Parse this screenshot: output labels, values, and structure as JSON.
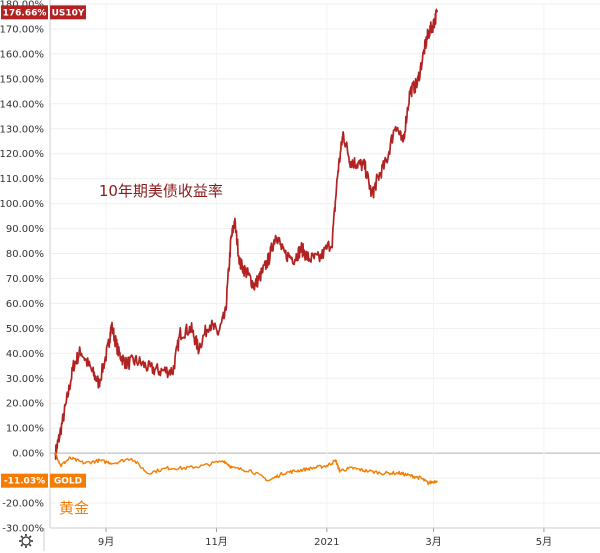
{
  "chart_data": {
    "type": "line",
    "x_ticks": [
      "9月",
      "11月",
      "2021",
      "3月",
      "5月"
    ],
    "y_ticks": [
      "180.00%",
      "170.00%",
      "160.00%",
      "150.00%",
      "140.00%",
      "130.00%",
      "120.00%",
      "110.00%",
      "100.00%",
      "90.00%",
      "80.00%",
      "70.00%",
      "60.00%",
      "50.00%",
      "40.00%",
      "30.00%",
      "20.00%",
      "10.00%",
      "0.00%",
      "-10.00%",
      "-20.00%",
      "-30.00%"
    ],
    "ylim": [
      -30,
      180
    ],
    "xlim": [
      "2020-08-01",
      "2021-06-01"
    ],
    "series": [
      {
        "name": "US10Y",
        "color": "#b22222",
        "last_label": "176.66%",
        "points": [
          [
            "2020-08-04",
            0
          ],
          [
            "2020-08-06",
            6
          ],
          [
            "2020-08-10",
            20
          ],
          [
            "2020-08-14",
            35
          ],
          [
            "2020-08-18",
            41
          ],
          [
            "2020-08-24",
            33
          ],
          [
            "2020-08-28",
            28
          ],
          [
            "2020-09-02",
            42
          ],
          [
            "2020-09-04",
            51
          ],
          [
            "2020-09-08",
            40
          ],
          [
            "2020-09-12",
            36
          ],
          [
            "2020-09-18",
            37
          ],
          [
            "2020-09-25",
            34
          ],
          [
            "2020-10-01",
            33
          ],
          [
            "2020-10-08",
            33
          ],
          [
            "2020-10-12",
            48
          ],
          [
            "2020-10-18",
            50
          ],
          [
            "2020-10-22",
            42
          ],
          [
            "2020-10-28",
            52
          ],
          [
            "2020-11-02",
            48
          ],
          [
            "2020-11-06",
            56
          ],
          [
            "2020-11-09",
            85
          ],
          [
            "2020-11-11",
            93
          ],
          [
            "2020-11-14",
            76
          ],
          [
            "2020-11-18",
            72
          ],
          [
            "2020-11-22",
            67
          ],
          [
            "2020-11-26",
            72
          ],
          [
            "2020-11-30",
            78
          ],
          [
            "2020-12-04",
            88
          ],
          [
            "2020-12-08",
            80
          ],
          [
            "2020-12-14",
            78
          ],
          [
            "2020-12-18",
            82
          ],
          [
            "2020-12-22",
            78
          ],
          [
            "2020-12-28",
            78
          ],
          [
            "2021-01-04",
            85
          ],
          [
            "2021-01-07",
            112
          ],
          [
            "2021-01-10",
            128
          ],
          [
            "2021-01-14",
            117
          ],
          [
            "2021-01-18",
            116
          ],
          [
            "2021-01-22",
            115
          ],
          [
            "2021-01-26",
            103
          ],
          [
            "2021-01-29",
            110
          ],
          [
            "2021-02-03",
            117
          ],
          [
            "2021-02-08",
            132
          ],
          [
            "2021-02-12",
            124
          ],
          [
            "2021-02-16",
            145
          ],
          [
            "2021-02-20",
            148
          ],
          [
            "2021-02-24",
            162
          ],
          [
            "2021-02-26",
            168
          ],
          [
            "2021-03-01",
            172
          ],
          [
            "2021-03-03",
            176.66
          ]
        ]
      },
      {
        "name": "GOLD",
        "color": "#f57c00",
        "last_label": "-11.03%",
        "points": [
          [
            "2020-08-04",
            0
          ],
          [
            "2020-08-07",
            -5
          ],
          [
            "2020-08-12",
            -2
          ],
          [
            "2020-08-20",
            -4
          ],
          [
            "2020-08-28",
            -3
          ],
          [
            "2020-09-05",
            -4
          ],
          [
            "2020-09-15",
            -2
          ],
          [
            "2020-09-24",
            -8
          ],
          [
            "2020-10-05",
            -6
          ],
          [
            "2020-10-15",
            -6
          ],
          [
            "2020-10-25",
            -5
          ],
          [
            "2020-11-05",
            -3
          ],
          [
            "2020-11-10",
            -6
          ],
          [
            "2020-11-20",
            -7
          ],
          [
            "2020-11-30",
            -11
          ],
          [
            "2020-12-08",
            -8
          ],
          [
            "2020-12-16",
            -7
          ],
          [
            "2020-12-24",
            -6
          ],
          [
            "2021-01-01",
            -5
          ],
          [
            "2021-01-06",
            -3
          ],
          [
            "2021-01-08",
            -7
          ],
          [
            "2021-01-15",
            -6
          ],
          [
            "2021-01-22",
            -7
          ],
          [
            "2021-02-01",
            -8
          ],
          [
            "2021-02-10",
            -8
          ],
          [
            "2021-02-16",
            -9
          ],
          [
            "2021-02-22",
            -10
          ],
          [
            "2021-02-26",
            -12
          ],
          [
            "2021-03-03",
            -11.03
          ]
        ]
      }
    ],
    "annotations": [
      {
        "text": "10年期美债收益率",
        "color": "#8b1a1a",
        "x": "2020-08-28",
        "y": 103
      },
      {
        "text": "黄金",
        "color": "#f57c00",
        "x": "2020-08-06",
        "y": -24
      }
    ],
    "grid": true,
    "legend": "left-badges"
  },
  "ui": {
    "settings_icon": "gear-icon",
    "axis_line_color": "#cccccc"
  }
}
